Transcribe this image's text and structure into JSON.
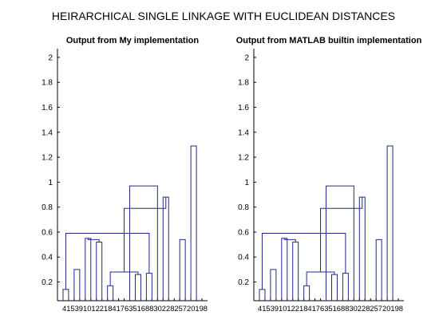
{
  "suptitle": "HEIRARCHICAL SINGLE LINKAGE WITH EUCLIDEAN DISTANCES",
  "colors": {
    "link": "#1f2a8c",
    "axis": "#000000"
  },
  "chart_data": [
    {
      "type": "dendrogram",
      "title": "Output from My implementation",
      "xlabel": "",
      "ylabel": "",
      "ylim": [
        0.05,
        2.07
      ],
      "yticks": [
        0.2,
        0.4,
        0.6,
        0.8,
        1,
        1.2,
        1.4,
        1.6,
        1.8,
        2
      ],
      "ytick_labels": [
        "0.2",
        "0.4",
        "0.6",
        "0.8",
        "1",
        "1.2",
        "1.4",
        "1.6",
        "1.8",
        "2"
      ],
      "leaf_order": [
        "4",
        "15",
        "3",
        "9",
        "10",
        "12",
        "2",
        "18",
        "14",
        "17",
        "6",
        "3",
        "5",
        "16",
        "8",
        "28",
        "30",
        "25",
        "29",
        "20",
        "23",
        "27",
        "2",
        "21",
        "26",
        "19"
      ],
      "leaf_labels_text": "41539101221841763516883022825720198",
      "merges": [
        [
          1,
          2,
          0.14
        ],
        [
          9,
          10,
          0.17
        ],
        [
          14,
          15,
          0.26
        ],
        [
          16,
          17,
          0.27
        ],
        [
          28,
          29,
          0.28
        ],
        [
          3,
          4,
          0.3
        ],
        [
          5,
          6,
          0.55
        ],
        [
          7,
          8,
          0.52
        ],
        [
          33,
          34,
          0.54
        ],
        [
          22,
          23,
          0.54
        ],
        [
          21,
          39,
          0.6
        ],
        [
          19,
          20,
          0.88
        ],
        [
          27,
          30,
          0.59
        ],
        [
          31,
          38,
          0.79
        ],
        [
          37,
          40,
          0.86
        ],
        [
          41,
          44,
          0.92
        ],
        [
          42,
          45,
          0.96
        ],
        [
          35,
          46,
          0.98
        ],
        [
          36,
          47,
          1.04
        ],
        [
          24,
          25,
          1.29
        ],
        [
          43,
          48,
          1.16
        ],
        [
          49,
          26,
          1.44
        ],
        [
          51,
          32,
          1.73
        ],
        [
          18,
          13,
          0.97
        ],
        [
          53,
          50,
          1.57
        ],
        [
          55,
          11,
          1.92
        ],
        [
          54,
          52,
          1.92
        ],
        [
          57,
          56,
          2.02
        ]
      ]
    },
    {
      "type": "dendrogram",
      "title": "Output from MATLAB builtin implementation",
      "xlabel": "",
      "ylabel": "",
      "ylim": [
        0.05,
        2.07
      ],
      "yticks": [
        0.2,
        0.4,
        0.6,
        0.8,
        1,
        1.2,
        1.4,
        1.6,
        1.8,
        2
      ],
      "ytick_labels": [
        "0.2",
        "0.4",
        "0.6",
        "0.8",
        "1",
        "1.2",
        "1.4",
        "1.6",
        "1.8",
        "2"
      ],
      "leaf_order": [
        "4",
        "15",
        "3",
        "9",
        "10",
        "12",
        "2",
        "18",
        "14",
        "17",
        "6",
        "3",
        "5",
        "16",
        "8",
        "28",
        "30",
        "25",
        "29",
        "20",
        "23",
        "27",
        "2",
        "21",
        "26",
        "19"
      ],
      "leaf_labels_text": "41539101221841763516883022825720198",
      "merges": [
        [
          1,
          2,
          0.14
        ],
        [
          9,
          10,
          0.17
        ],
        [
          14,
          15,
          0.26
        ],
        [
          16,
          17,
          0.27
        ],
        [
          28,
          29,
          0.28
        ],
        [
          3,
          4,
          0.3
        ],
        [
          5,
          6,
          0.55
        ],
        [
          7,
          8,
          0.52
        ],
        [
          33,
          34,
          0.54
        ],
        [
          22,
          23,
          0.54
        ],
        [
          21,
          39,
          0.6
        ],
        [
          19,
          20,
          0.88
        ],
        [
          27,
          30,
          0.59
        ],
        [
          31,
          38,
          0.79
        ],
        [
          37,
          40,
          0.86
        ],
        [
          41,
          44,
          0.92
        ],
        [
          42,
          45,
          0.96
        ],
        [
          35,
          46,
          0.98
        ],
        [
          36,
          47,
          1.04
        ],
        [
          24,
          25,
          1.29
        ],
        [
          43,
          48,
          1.16
        ],
        [
          49,
          26,
          1.44
        ],
        [
          51,
          32,
          1.73
        ],
        [
          18,
          13,
          0.97
        ],
        [
          53,
          50,
          1.57
        ],
        [
          55,
          11,
          1.92
        ],
        [
          54,
          52,
          1.92
        ],
        [
          57,
          56,
          2.02
        ]
      ]
    }
  ]
}
